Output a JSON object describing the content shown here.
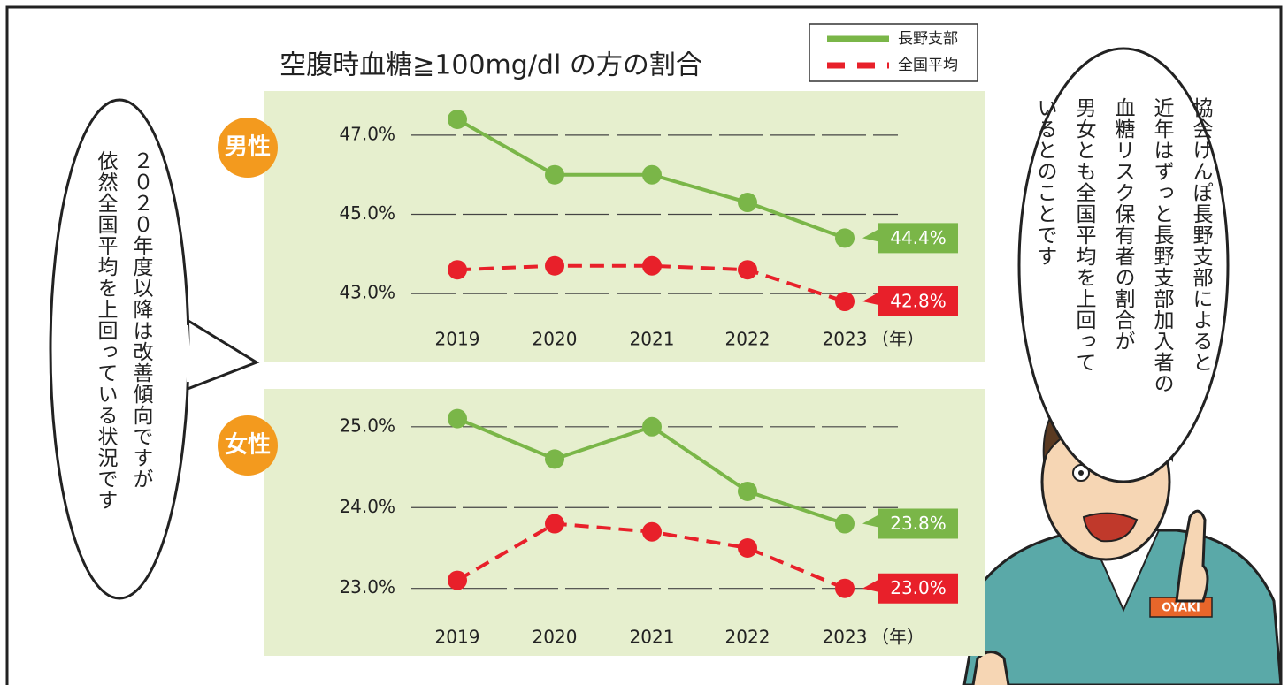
{
  "title": "空腹時血糖≧100mg/dl の方の割合",
  "chart_data": [
    {
      "type": "line",
      "label": "男性",
      "categories": [
        "2019",
        "2020",
        "2021",
        "2022",
        "2023"
      ],
      "x_unit": "（年）",
      "ylim": [
        42.5,
        47.5
      ],
      "yticks": [
        {
          "value": 43,
          "label": "43.0%"
        },
        {
          "value": 45,
          "label": "45.0%"
        },
        {
          "value": 47,
          "label": "47.0%"
        }
      ],
      "grid": true,
      "legend": "top-right",
      "series": [
        {
          "name": "長野支部",
          "color": "#7ab648",
          "dash": false,
          "values": [
            47.4,
            46.0,
            46.0,
            45.3,
            44.4
          ],
          "value_labels": [
            null,
            null,
            null,
            null,
            "44.4%"
          ]
        },
        {
          "name": "全国平均",
          "color": "#e8202a",
          "dash": true,
          "values": [
            43.6,
            43.7,
            43.7,
            43.6,
            42.8
          ],
          "value_labels": [
            null,
            null,
            null,
            null,
            "42.8%"
          ]
        }
      ]
    },
    {
      "type": "line",
      "label": "女性",
      "categories": [
        "2019",
        "2020",
        "2021",
        "2022",
        "2023"
      ],
      "x_unit": "（年）",
      "ylim": [
        22.8,
        25.2
      ],
      "yticks": [
        {
          "value": 23,
          "label": "23.0%"
        },
        {
          "value": 24,
          "label": "24.0%"
        },
        {
          "value": 25,
          "label": "25.0%"
        }
      ],
      "grid": true,
      "series": [
        {
          "color": "#7ab648",
          "dash": false,
          "values": [
            25.1,
            24.6,
            25.0,
            24.2,
            23.8
          ],
          "value_labels": [
            null,
            null,
            null,
            null,
            "23.8%"
          ]
        },
        {
          "color": "#e8202a",
          "dash": true,
          "values": [
            23.1,
            23.8,
            23.7,
            23.5,
            23.0
          ],
          "value_labels": [
            null,
            null,
            null,
            null,
            "23.0%"
          ]
        }
      ]
    }
  ],
  "bubbles": {
    "left": [
      "２０２０年度以降は改善傾向ですが",
      "依然全国平均を上回っている状況です"
    ],
    "right": [
      "協会けんぽ長野支部によると",
      "近年はずっと長野支部加入者の",
      "血糖リスク保有者の割合が",
      "男女とも全国平均を上回って",
      "いるとのことです"
    ]
  }
}
